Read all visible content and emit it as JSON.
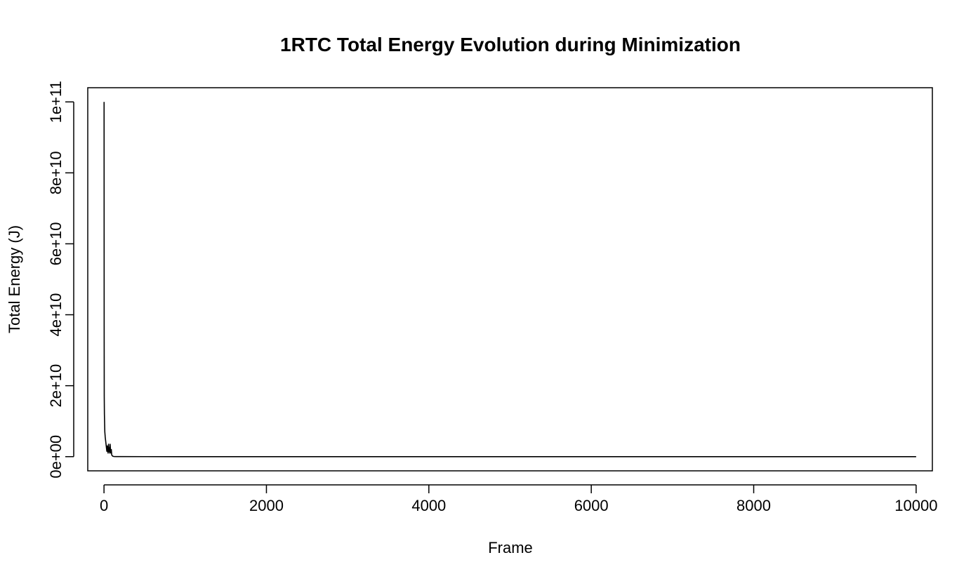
{
  "chart_data": {
    "type": "line",
    "title": "1RTC Total Energy Evolution during Minimization",
    "xlabel": "Frame",
    "ylabel": "Total Energy (J)",
    "xlim": [
      -200,
      10200
    ],
    "ylim": [
      -4000000000.0,
      104000000000.0
    ],
    "grid": false,
    "x_ticks": [
      0,
      2000,
      4000,
      6000,
      8000,
      10000
    ],
    "x_tick_labels": [
      "0",
      "2000",
      "4000",
      "6000",
      "8000",
      "10000"
    ],
    "y_ticks": [
      0,
      20000000000.0,
      40000000000.0,
      60000000000.0,
      80000000000.0,
      100000000000.0
    ],
    "y_tick_labels": [
      "0e+00",
      "2e+10",
      "4e+10",
      "6e+10",
      "8e+10",
      "1e+11"
    ],
    "series": [
      {
        "color": "#000000",
        "x": [
          1,
          2,
          3,
          5,
          8,
          10,
          15,
          20,
          25,
          30,
          35,
          40,
          45,
          50,
          55,
          60,
          65,
          70,
          75,
          80,
          85,
          90,
          95,
          100,
          110,
          120,
          150,
          200,
          500,
          1000,
          2000,
          5000,
          10000
        ],
        "y": [
          100000000000.0,
          36000000000.0,
          17000000000.0,
          12000000000.0,
          9000000000.0,
          7000000000.0,
          5500000000.0,
          4500000000.0,
          3500000000.0,
          2500000000.0,
          1500000000.0,
          3000000000.0,
          2000000000.0,
          1000000000.0,
          3500000000.0,
          1500000000.0,
          2500000000.0,
          1000000000.0,
          3500000000.0,
          2000000000.0,
          1000000000.0,
          2000000000.0,
          500000000.0,
          300000000.0,
          100000000.0,
          50000000.0,
          20000000.0,
          10000000.0,
          5000000.0,
          1000000.0,
          500000.0,
          100000.0,
          100000.0
        ]
      }
    ]
  }
}
